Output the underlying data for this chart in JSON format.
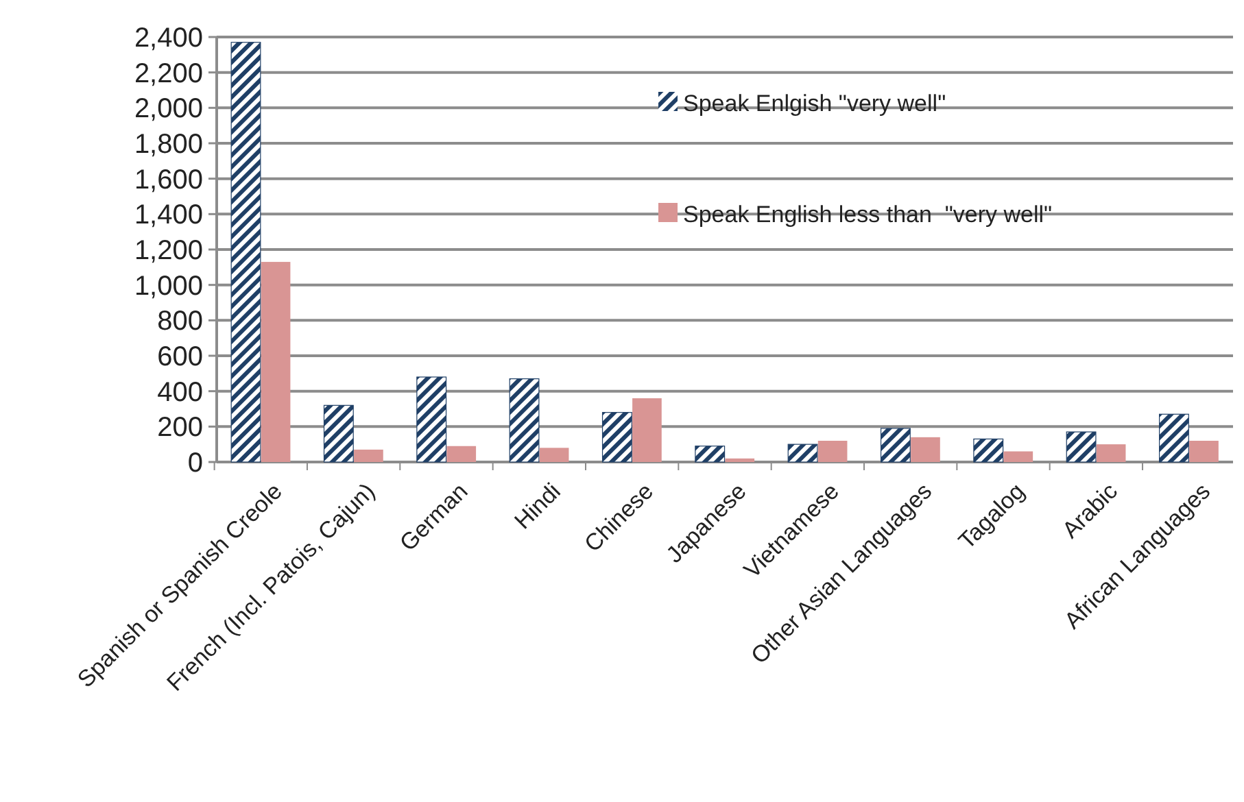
{
  "chart_data": {
    "type": "bar",
    "categories": [
      "Spanish or Spanish Creole",
      "French (Incl. Patois, Cajun)",
      "German",
      "Hindi",
      "Chinese",
      "Japanese",
      "Vietnamese",
      "Other Asian Languages",
      "Tagalog",
      "Arabic",
      "African Languages"
    ],
    "series": [
      {
        "name": "Speak Enlgish \"very well\"",
        "color": "#1f3f66",
        "values": [
          2370,
          320,
          480,
          470,
          280,
          90,
          100,
          190,
          130,
          170,
          270
        ]
      },
      {
        "name": "Speak English less than  \"very well\"",
        "color": "#d99594",
        "values": [
          1130,
          70,
          90,
          80,
          360,
          20,
          120,
          140,
          60,
          100,
          120
        ]
      }
    ],
    "ylim": [
      0,
      2400
    ],
    "yticks": [
      {
        "value": 0,
        "label": "0"
      },
      {
        "value": 200,
        "label": "200"
      },
      {
        "value": 400,
        "label": "400"
      },
      {
        "value": 600,
        "label": "600"
      },
      {
        "value": 800,
        "label": "800"
      },
      {
        "value": 1000,
        "label": "1,000"
      },
      {
        "value": 1200,
        "label": "1,200"
      },
      {
        "value": 1400,
        "label": "1,400"
      },
      {
        "value": 1600,
        "label": "1,600"
      },
      {
        "value": 1800,
        "label": "1,800"
      },
      {
        "value": 2000,
        "label": "2,000"
      },
      {
        "value": 2200,
        "label": "2,200"
      },
      {
        "value": 2400,
        "label": "2,400"
      }
    ],
    "grid": "y",
    "legend": "top right"
  }
}
